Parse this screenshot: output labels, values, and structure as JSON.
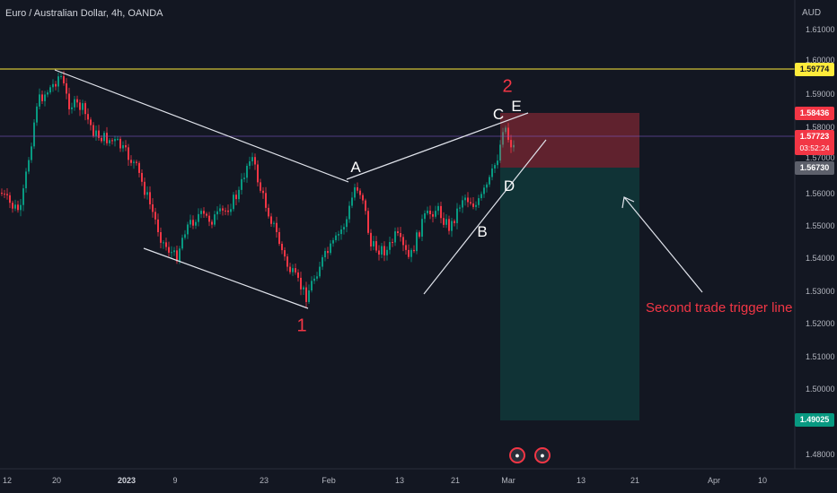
{
  "header": {
    "title": "Euro / Australian Dollar, 4h, OANDA",
    "currency": "AUD"
  },
  "y_axis": [
    "1.61000",
    "1.60000",
    "1.59000",
    "1.58000",
    "1.57000",
    "1.56000",
    "1.55000",
    "1.54000",
    "1.53000",
    "1.52000",
    "1.51000",
    "1.50000",
    "1.48000"
  ],
  "price_tags": {
    "resistance": "1.59774",
    "stop": "1.58436",
    "current": "1.57723",
    "countdown": "03:52:24",
    "entry": "1.56730",
    "target": "1.49025"
  },
  "x_axis": [
    {
      "text": "12",
      "bold": false
    },
    {
      "text": "20",
      "bold": false
    },
    {
      "text": "2023",
      "bold": true
    },
    {
      "text": "9",
      "bold": false
    },
    {
      "text": "23",
      "bold": false
    },
    {
      "text": "Feb",
      "bold": false
    },
    {
      "text": "13",
      "bold": false
    },
    {
      "text": "21",
      "bold": false
    },
    {
      "text": "Mar",
      "bold": false
    },
    {
      "text": "13",
      "bold": false
    },
    {
      "text": "21",
      "bold": false
    },
    {
      "text": "Apr",
      "bold": false
    },
    {
      "text": "10",
      "bold": false
    }
  ],
  "annotations": {
    "wave1": "1",
    "wave2": "2",
    "a": "A",
    "b": "B",
    "c": "C",
    "d": "D",
    "e": "E",
    "trigger_text": "Second trade trigger line"
  },
  "colors": {
    "background": "#131722",
    "up_candle": "#089981",
    "down_candle": "#f23645",
    "resistance_line": "#ffeb3b",
    "stop_zone": "rgba(242,54,69,0.35)",
    "target_zone": "rgba(8,153,129,0.25)"
  },
  "events": [
    "flag-icon",
    "flag-icon"
  ]
}
